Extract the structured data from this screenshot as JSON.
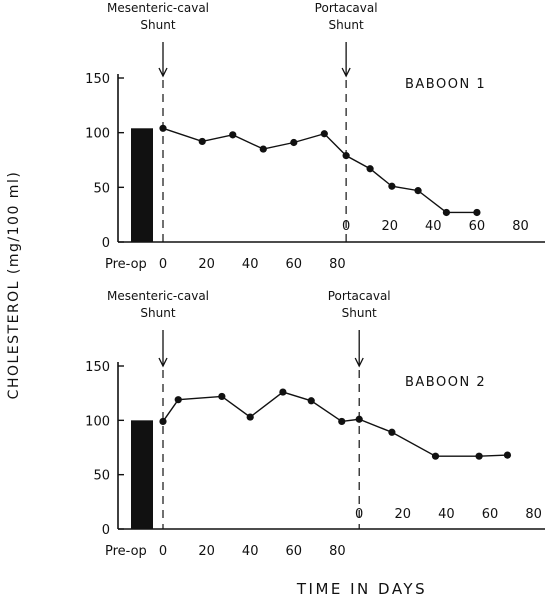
{
  "ylabel": "CHOLESTEROL (mg/100 ml)",
  "xlabel": "TIME IN DAYS",
  "chart_data": [
    {
      "type": "line",
      "title": "BABOON 1",
      "ylim": [
        0,
        150
      ],
      "yticks": [
        "0",
        "50",
        "100",
        "150"
      ],
      "preop_label": "Pre-op",
      "preop_value": 104,
      "annotations": [
        {
          "line1": "Mesenteric-caval",
          "line2": "Shunt",
          "day": 0
        },
        {
          "line1": "Portacaval",
          "line2": "Shunt",
          "day": 84
        }
      ],
      "xticks_primary": [
        "0",
        "20",
        "40",
        "60",
        "80"
      ],
      "xticks_secondary": [
        "0",
        "20",
        "40",
        "60",
        "80"
      ],
      "xlim": [
        0,
        144
      ],
      "secondary_origin": 84,
      "x": [
        0,
        18,
        32,
        46,
        60,
        74,
        84,
        95,
        105,
        117,
        130,
        144
      ],
      "y": [
        104,
        92,
        98,
        85,
        91,
        99,
        79,
        67,
        51,
        47,
        27,
        27
      ]
    },
    {
      "type": "line",
      "title": "BABOON 2",
      "ylim": [
        0,
        150
      ],
      "yticks": [
        "0",
        "50",
        "100",
        "150"
      ],
      "preop_label": "Pre-op",
      "preop_value": 100,
      "annotations": [
        {
          "line1": "Mesenteric-caval",
          "line2": "Shunt",
          "day": 0
        },
        {
          "line1": "Portacaval",
          "line2": "Shunt",
          "day": 90
        }
      ],
      "xticks_primary": [
        "0",
        "20",
        "40",
        "60",
        "80"
      ],
      "xticks_secondary": [
        "0",
        "20",
        "40",
        "60",
        "80"
      ],
      "xlim": [
        0,
        162
      ],
      "secondary_origin": 90,
      "x": [
        0,
        7,
        27,
        40,
        55,
        68,
        82,
        90,
        105,
        125,
        145,
        158
      ],
      "y": [
        99,
        119,
        122,
        103,
        126,
        118,
        99,
        101,
        89,
        67,
        67,
        68
      ]
    }
  ]
}
